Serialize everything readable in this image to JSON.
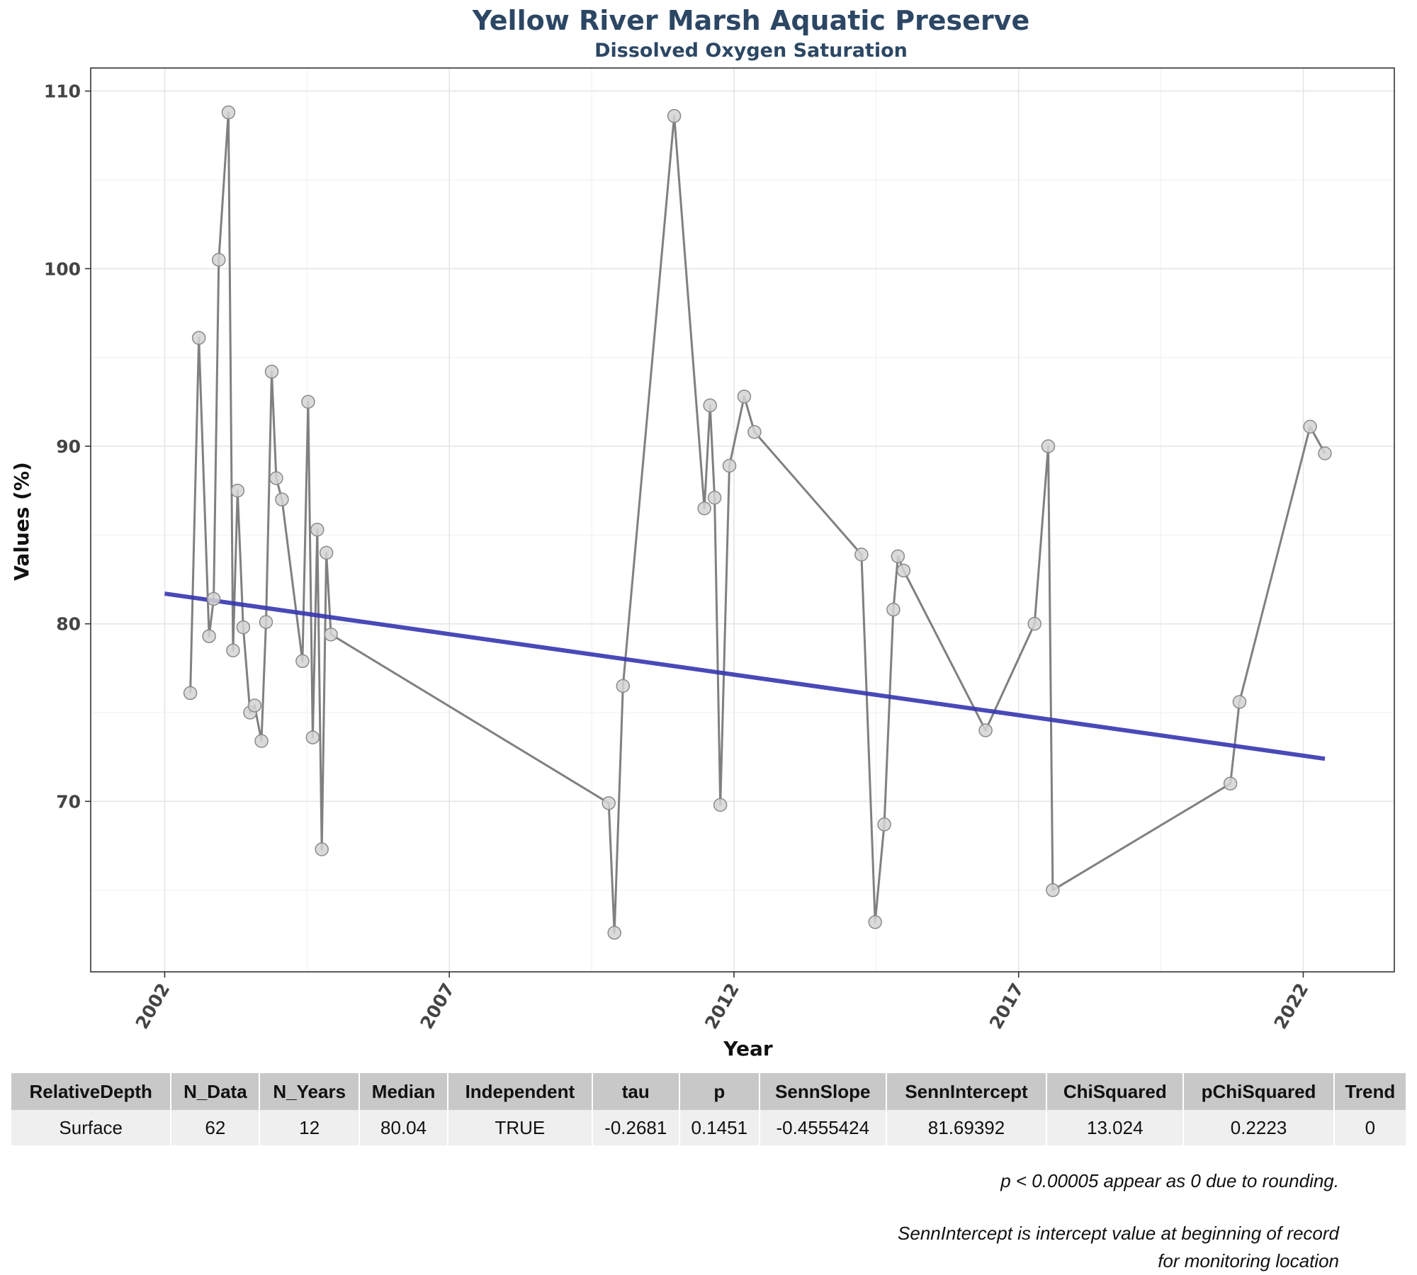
{
  "chart_data": {
    "type": "line",
    "title": "Yellow River Marsh Aquatic Preserve",
    "subtitle": "Dissolved Oxygen Saturation",
    "xlabel": "Year",
    "ylabel": "Values (%)",
    "xlim": [
      2000.7,
      2023.6
    ],
    "ylim": [
      60.4,
      111.3
    ],
    "x_ticks": [
      2002,
      2007,
      2012,
      2017,
      2022
    ],
    "y_ticks": [
      70,
      80,
      90,
      100,
      110
    ],
    "grid": true,
    "legend": "none",
    "series": [
      {
        "x": [
          2002.45,
          2002.6,
          2002.78,
          2002.86,
          2002.95,
          2003.12,
          2003.2,
          2003.28,
          2003.38,
          2003.5,
          2003.58,
          2003.7,
          2003.78,
          2003.88,
          2003.96,
          2004.06,
          2004.42,
          2004.52,
          2004.6,
          2004.68,
          2004.76,
          2004.84,
          2004.92,
          2009.8,
          2009.9,
          2010.05,
          2010.95,
          2011.48,
          2011.58,
          2011.66,
          2011.76,
          2011.92,
          2012.18,
          2012.36,
          2014.24,
          2014.48,
          2014.64,
          2014.8,
          2014.88,
          2014.98,
          2016.42,
          2017.28,
          2017.52,
          2017.6,
          2020.72,
          2020.88,
          2022.12,
          2022.38
        ],
        "y": [
          76.1,
          96.1,
          79.3,
          81.4,
          100.5,
          108.8,
          78.5,
          87.5,
          79.8,
          75.0,
          75.4,
          73.4,
          80.1,
          94.2,
          88.2,
          87.0,
          77.9,
          92.5,
          73.6,
          85.3,
          67.3,
          84.0,
          79.4,
          69.9,
          62.6,
          76.5,
          108.6,
          86.5,
          92.3,
          87.1,
          69.8,
          88.9,
          92.8,
          90.8,
          83.9,
          63.2,
          68.7,
          80.8,
          83.8,
          83.0,
          74.0,
          80.0,
          90.0,
          65.0,
          71.0,
          75.6,
          91.1,
          89.6
        ]
      },
      {
        "type": "trend",
        "x": [
          2002.0,
          2022.38
        ],
        "y": [
          81.7,
          72.4
        ]
      }
    ],
    "colors": {
      "data_line": "#808080",
      "point_fill": "#d3d3d3",
      "point_stroke": "#8a8a8a",
      "trend_line": "#3535b0",
      "title": "#2c4764"
    }
  },
  "table": {
    "headers": [
      "RelativeDepth",
      "N_Data",
      "N_Years",
      "Median",
      "Independent",
      "tau",
      "p",
      "SennSlope",
      "SennIntercept",
      "ChiSquared",
      "pChiSquared",
      "Trend"
    ],
    "rows": [
      [
        "Surface",
        "62",
        "12",
        "80.04",
        "TRUE",
        "-0.2681",
        "0.1451",
        "-0.4555424",
        "81.69392",
        "13.024",
        "0.2223",
        "0"
      ]
    ]
  },
  "notes": {
    "note1": "p < 0.00005 appear as 0 due to rounding.",
    "note2": "SennIntercept is intercept value at beginning of record for monitoring location"
  }
}
